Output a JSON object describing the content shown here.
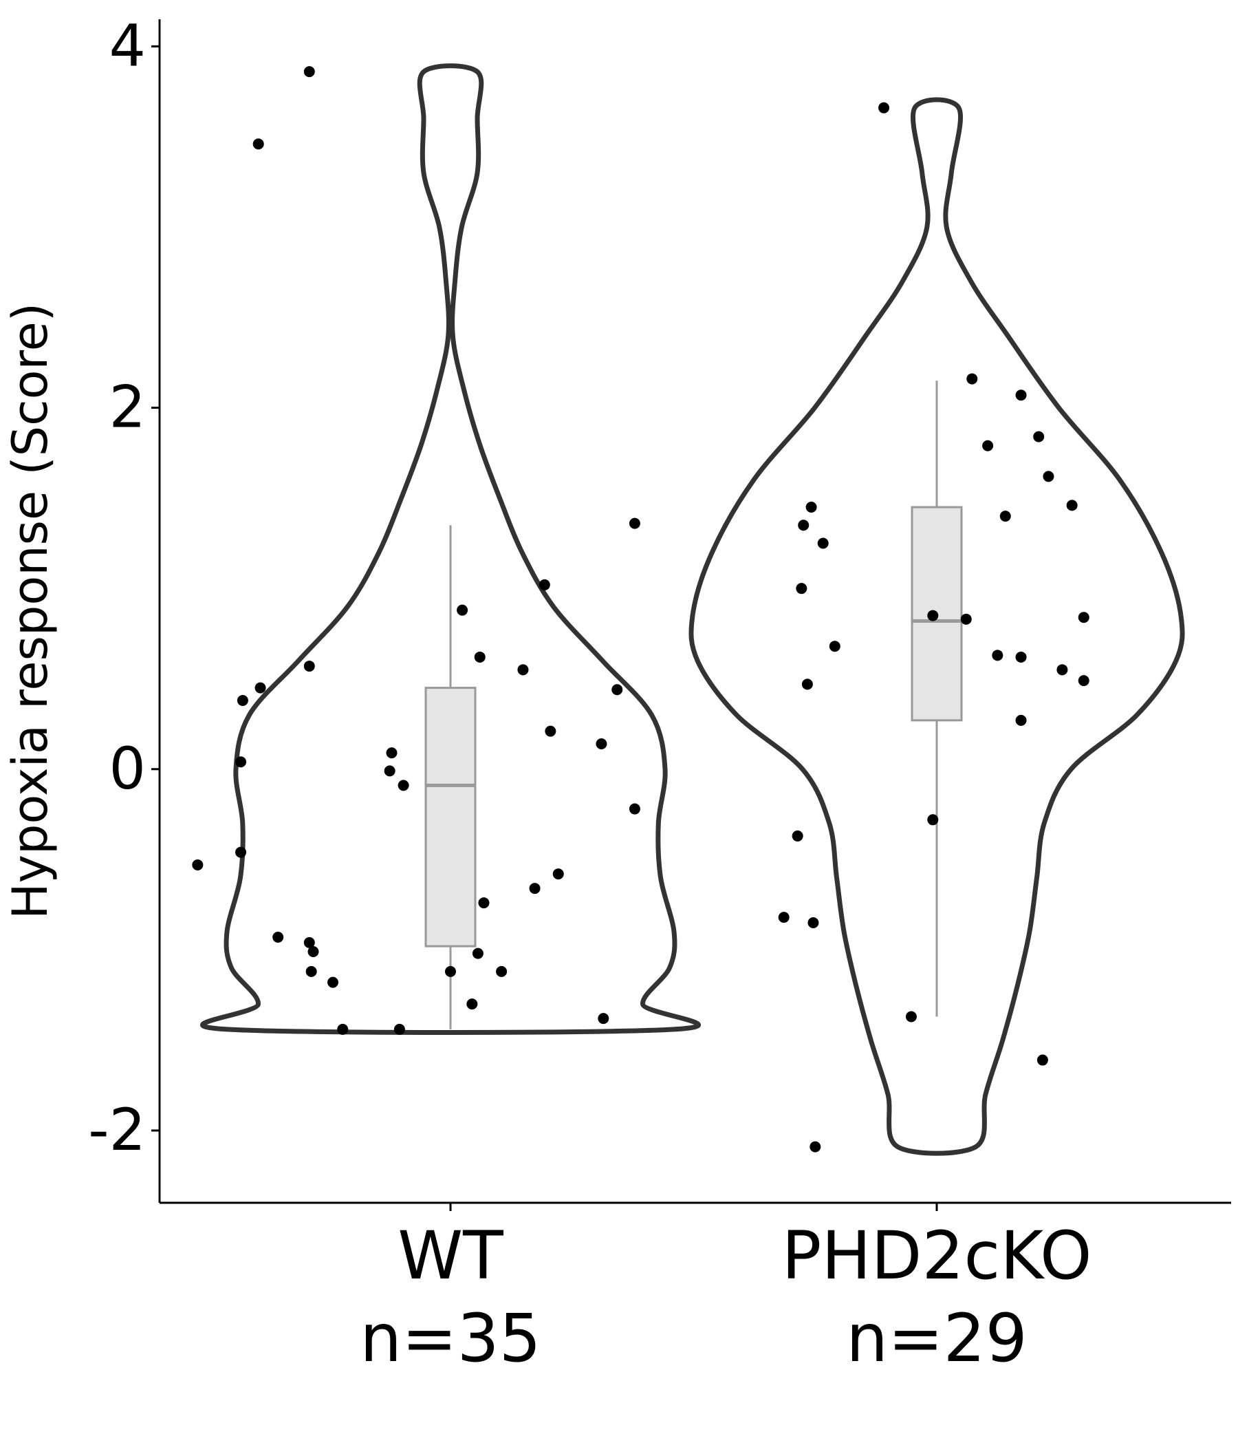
{
  "chart_data": {
    "type": "violin",
    "ylabel": "Hypoxia response (Score)",
    "xlabel": "",
    "ylim": [
      -2.4,
      4.15
    ],
    "yticks": [
      -2,
      0,
      2,
      4
    ],
    "ytick_labels": [
      "-2",
      "0",
      "2",
      "4"
    ],
    "grid": false,
    "colors": {
      "violin_outline": "#333333",
      "box_fill": "#e5e5e5",
      "box_stroke": "#999999",
      "point": "#000000"
    },
    "groups": [
      {
        "name": "WT",
        "n_label": "n=35",
        "min": -1.44,
        "max": 3.86,
        "box": {
          "whisker_low": -1.44,
          "q1": -0.98,
          "median": -0.09,
          "q3": 0.45,
          "whisker_high": 1.35
        },
        "density_profile": [
          [
            -1.44,
            1.0
          ],
          [
            -1.3,
            0.86
          ],
          [
            -1.1,
            0.98
          ],
          [
            -0.9,
            1.0
          ],
          [
            -0.6,
            0.94
          ],
          [
            -0.3,
            0.93
          ],
          [
            0.0,
            0.96
          ],
          [
            0.3,
            0.9
          ],
          [
            0.6,
            0.68
          ],
          [
            0.9,
            0.46
          ],
          [
            1.2,
            0.32
          ],
          [
            1.5,
            0.22
          ],
          [
            1.8,
            0.13
          ],
          [
            2.1,
            0.06
          ],
          [
            2.4,
            0.01
          ],
          [
            2.7,
            0.02
          ],
          [
            3.0,
            0.05
          ],
          [
            3.3,
            0.12
          ],
          [
            3.6,
            0.12
          ],
          [
            3.86,
            0.12
          ]
        ],
        "points": [
          [
            -0.72,
            3.86
          ],
          [
            -0.98,
            3.46
          ],
          [
            0.94,
            1.36
          ],
          [
            0.48,
            1.02
          ],
          [
            0.06,
            0.88
          ],
          [
            0.15,
            0.62
          ],
          [
            -0.72,
            0.57
          ],
          [
            0.37,
            0.55
          ],
          [
            -0.97,
            0.45
          ],
          [
            0.85,
            0.44
          ],
          [
            -1.06,
            0.38
          ],
          [
            0.51,
            0.21
          ],
          [
            0.77,
            0.14
          ],
          [
            -0.3,
            0.09
          ],
          [
            -1.07,
            0.04
          ],
          [
            -0.31,
            -0.01
          ],
          [
            -0.24,
            -0.09
          ],
          [
            0.94,
            -0.22
          ],
          [
            -1.29,
            -0.53
          ],
          [
            -1.07,
            -0.46
          ],
          [
            0.55,
            -0.58
          ],
          [
            0.43,
            -0.66
          ],
          [
            0.17,
            -0.74
          ],
          [
            -0.88,
            -0.93
          ],
          [
            -0.72,
            -0.96
          ],
          [
            -0.7,
            -1.01
          ],
          [
            0.14,
            -1.02
          ],
          [
            -0.71,
            -1.12
          ],
          [
            0.0,
            -1.12
          ],
          [
            0.26,
            -1.12
          ],
          [
            -0.6,
            -1.18
          ],
          [
            0.11,
            -1.3
          ],
          [
            0.78,
            -1.38
          ],
          [
            -0.26,
            -1.44
          ],
          [
            -0.55,
            -1.44
          ]
        ]
      },
      {
        "name": "PHD2cKO",
        "n_label": "n=29",
        "min": -2.09,
        "max": 3.66,
        "box": {
          "whisker_low": -1.37,
          "q1": 0.27,
          "median": 0.82,
          "q3": 1.45,
          "whisker_high": 2.15
        },
        "density_profile": [
          [
            -2.09,
            0.16
          ],
          [
            -1.8,
            0.2
          ],
          [
            -1.5,
            0.27
          ],
          [
            -1.2,
            0.33
          ],
          [
            -0.9,
            0.38
          ],
          [
            -0.6,
            0.41
          ],
          [
            -0.3,
            0.44
          ],
          [
            0.0,
            0.55
          ],
          [
            0.3,
            0.82
          ],
          [
            0.6,
            0.98
          ],
          [
            0.85,
            1.0
          ],
          [
            1.2,
            0.92
          ],
          [
            1.6,
            0.75
          ],
          [
            2.0,
            0.5
          ],
          [
            2.4,
            0.29
          ],
          [
            2.7,
            0.14
          ],
          [
            3.0,
            0.04
          ],
          [
            3.3,
            0.06
          ],
          [
            3.66,
            0.09
          ]
        ],
        "points": [
          [
            -0.27,
            3.66
          ],
          [
            0.18,
            2.16
          ],
          [
            0.43,
            2.07
          ],
          [
            0.26,
            1.79
          ],
          [
            0.52,
            1.84
          ],
          [
            0.57,
            1.62
          ],
          [
            0.69,
            1.46
          ],
          [
            -0.64,
            1.45
          ],
          [
            -0.68,
            1.35
          ],
          [
            0.35,
            1.4
          ],
          [
            -0.58,
            1.25
          ],
          [
            -0.69,
            1.0
          ],
          [
            -0.02,
            0.85
          ],
          [
            0.15,
            0.83
          ],
          [
            0.75,
            0.84
          ],
          [
            -0.52,
            0.68
          ],
          [
            0.31,
            0.63
          ],
          [
            0.43,
            0.62
          ],
          [
            0.64,
            0.55
          ],
          [
            -0.66,
            0.47
          ],
          [
            0.75,
            0.49
          ],
          [
            0.43,
            0.27
          ],
          [
            -0.02,
            -0.28
          ],
          [
            -0.71,
            -0.37
          ],
          [
            -0.78,
            -0.82
          ],
          [
            -0.63,
            -0.85
          ],
          [
            -0.13,
            -1.37
          ],
          [
            0.54,
            -1.61
          ],
          [
            -0.62,
            -2.09
          ]
        ]
      }
    ]
  }
}
